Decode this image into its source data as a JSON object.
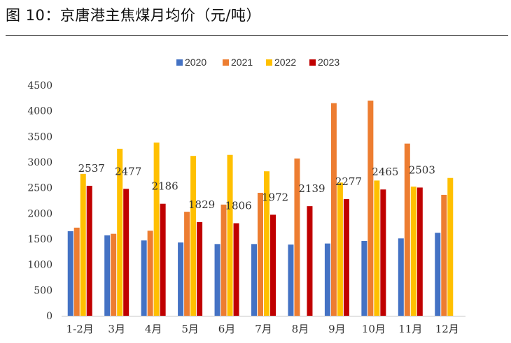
{
  "title": "图 10：京唐港主焦煤月均价（元/吨）",
  "chart_data": {
    "type": "bar",
    "title": "图 10：京唐港主焦煤月均价（元/吨）",
    "categories": [
      "1-2月",
      "3月",
      "4月",
      "5月",
      "6月",
      "7月",
      "8月",
      "9月",
      "10月",
      "11月",
      "12月"
    ],
    "series": [
      {
        "name": "2020",
        "color": "#4472C4",
        "values": [
          1650,
          1570,
          1470,
          1430,
          1400,
          1400,
          1390,
          1410,
          1460,
          1510,
          1620
        ]
      },
      {
        "name": "2021",
        "color": "#ED7D31",
        "values": [
          1720,
          1600,
          1660,
          2030,
          2170,
          2400,
          3070,
          4150,
          4200,
          3360,
          2360
        ]
      },
      {
        "name": "2022",
        "color": "#FFC000",
        "values": [
          2770,
          3260,
          3380,
          3120,
          3140,
          2820,
          null,
          2600,
          2640,
          2520,
          2690
        ]
      },
      {
        "name": "2023",
        "color": "#C00000",
        "values": [
          2537,
          2477,
          2186,
          1829,
          1806,
          1972,
          2139,
          2277,
          2465,
          2503,
          null
        ]
      }
    ],
    "data_labels": {
      "series": "2023",
      "values": [
        "2537",
        "2477",
        "2186",
        "1829",
        "1806",
        "1972",
        "2139",
        "2277",
        "2465",
        "2503"
      ]
    },
    "ylim": [
      0,
      4500
    ],
    "yticks": [
      "0",
      "500",
      "1000",
      "1500",
      "2000",
      "2500",
      "3000",
      "3500",
      "4000",
      "4500"
    ],
    "grid": false,
    "legend": "top"
  }
}
